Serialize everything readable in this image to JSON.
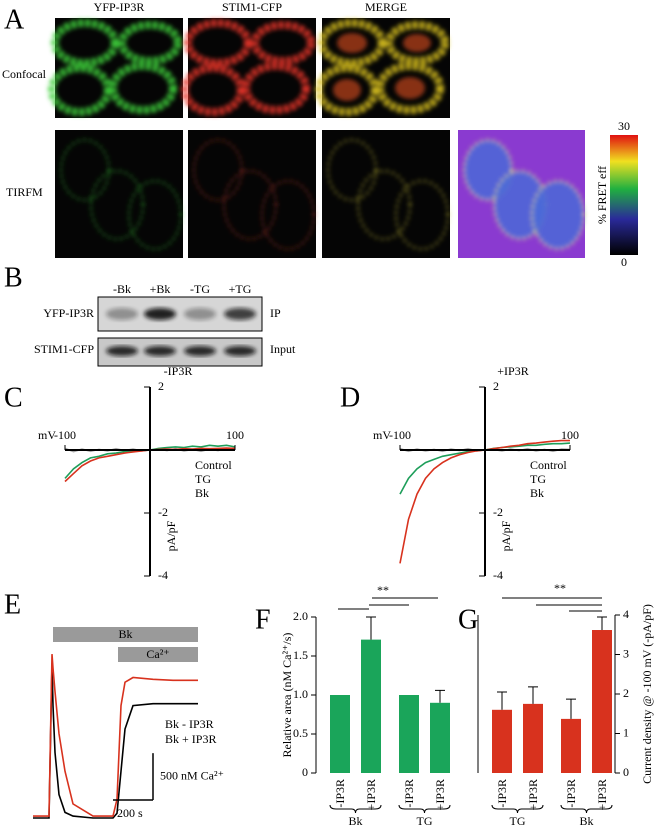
{
  "panel_a": {
    "label": "A",
    "columns": [
      "YFP-IP3R",
      "STIM1-CFP",
      "MERGE"
    ],
    "rows": [
      "Confocal",
      "TIRFM"
    ],
    "colorbar": {
      "label": "% FRET eff",
      "ticks": [
        0,
        30
      ]
    }
  },
  "panel_b": {
    "label": "B",
    "lanes": [
      "-Bk",
      "+Bk",
      "-TG",
      "+TG"
    ],
    "rows": [
      "YFP-IP3R",
      "STIM1-CFP"
    ],
    "row_notes": [
      "IP",
      "Input"
    ]
  },
  "chart_data": [
    {
      "type": "line",
      "panel": "C",
      "title": "-IP3R",
      "x_unit": "mV",
      "y_unit": "pA/pF",
      "x": [
        -100,
        -90,
        -80,
        -70,
        -60,
        -50,
        -40,
        -30,
        -20,
        -10,
        0,
        10,
        20,
        30,
        40,
        50,
        60,
        70,
        80,
        90,
        100
      ],
      "xlim": [
        -100,
        100
      ],
      "xticks": [
        -100,
        100
      ],
      "ylim": [
        -4,
        2
      ],
      "yticks": [
        2,
        -2,
        -4
      ],
      "series": [
        {
          "name": "Control",
          "color": "#a8a8a8",
          "values": [
            0.05,
            -0.05,
            0.03,
            -0.04,
            0.02,
            -0.03,
            0.04,
            -0.02,
            0.03,
            -0.03,
            0,
            0.03,
            -0.02,
            0.04,
            -0.03,
            0.02,
            -0.04,
            0.03,
            -0.02,
            0.04,
            0.02
          ]
        },
        {
          "name": "TG",
          "color": "#1e9e5a",
          "values": [
            -0.9,
            -0.6,
            -0.4,
            -0.25,
            -0.2,
            -0.12,
            -0.1,
            -0.05,
            -0.04,
            -0.02,
            0,
            0.05,
            0.08,
            0.1,
            0.08,
            0.12,
            0.1,
            0.15,
            0.12,
            0.15,
            0.1
          ]
        },
        {
          "name": "Bk",
          "color": "#d8321e",
          "values": [
            -1.0,
            -0.75,
            -0.5,
            -0.35,
            -0.25,
            -0.2,
            -0.15,
            -0.1,
            -0.06,
            -0.03,
            0,
            0.02,
            0.03,
            0.02,
            0.04,
            0.03,
            0.05,
            0.04,
            0.05,
            0.06,
            0.05
          ]
        }
      ]
    },
    {
      "type": "line",
      "panel": "D",
      "title": "+IP3R",
      "x_unit": "mV",
      "y_unit": "pA/pF",
      "x": [
        -100,
        -90,
        -80,
        -70,
        -60,
        -50,
        -40,
        -30,
        -20,
        -10,
        0,
        10,
        20,
        30,
        40,
        50,
        60,
        70,
        80,
        90,
        100
      ],
      "xlim": [
        -100,
        100
      ],
      "xticks": [
        -100,
        100
      ],
      "ylim": [
        -4,
        2
      ],
      "yticks": [
        2,
        -2,
        -4
      ],
      "series": [
        {
          "name": "Control",
          "color": "#a8a8a8",
          "values": [
            0.04,
            -0.04,
            0.03,
            -0.03,
            0.02,
            -0.04,
            0.03,
            -0.02,
            0.04,
            -0.03,
            0,
            0.02,
            -0.03,
            0.03,
            -0.02,
            0.04,
            -0.03,
            0.02,
            -0.04,
            0.03,
            0.02
          ]
        },
        {
          "name": "TG",
          "color": "#1e9e5a",
          "values": [
            -1.4,
            -0.9,
            -0.6,
            -0.4,
            -0.3,
            -0.2,
            -0.15,
            -0.1,
            -0.05,
            -0.02,
            0,
            0.05,
            0.08,
            0.1,
            0.12,
            0.15,
            0.15,
            0.18,
            0.2,
            0.2,
            0.22
          ]
        },
        {
          "name": "Bk",
          "color": "#d8321e",
          "values": [
            -3.6,
            -2.2,
            -1.4,
            -0.9,
            -0.6,
            -0.4,
            -0.25,
            -0.15,
            -0.08,
            -0.03,
            0,
            0.04,
            0.08,
            0.12,
            0.15,
            0.2,
            0.22,
            0.25,
            0.28,
            0.3,
            0.3
          ]
        }
      ]
    },
    {
      "type": "line",
      "panel": "E",
      "x": [
        0,
        80,
        95,
        100,
        110,
        130,
        160,
        200,
        300,
        400,
        420,
        440,
        460,
        500,
        600,
        700,
        825
      ],
      "xlim": [
        0,
        825
      ],
      "ylim": [
        0,
        1900
      ],
      "bars": [
        {
          "label": "Bk",
          "start": 100,
          "end": 825
        },
        {
          "label": "Ca²⁺",
          "start": 425,
          "end": 825
        }
      ],
      "scale_x": {
        "value": 200,
        "label": "200 s"
      },
      "scale_y": {
        "value": 500,
        "label": "500 nM Ca²⁺"
      },
      "series": [
        {
          "name": "Bk - IP3R",
          "color": "#000000",
          "values": [
            0,
            0,
            1650,
            1200,
            700,
            250,
            60,
            20,
            0,
            0,
            50,
            500,
            950,
            1200,
            1220,
            1220,
            1220
          ]
        },
        {
          "name": "Bk + IP3R",
          "color": "#d8321e",
          "values": [
            20,
            20,
            1750,
            1600,
            1350,
            900,
            500,
            150,
            20,
            20,
            200,
            1200,
            1450,
            1500,
            1480,
            1470,
            1470
          ]
        }
      ]
    },
    {
      "type": "bar",
      "panel": "F",
      "ylabel": "Relative area (nM Ca²⁺/s)",
      "categories": [
        "-IP3R",
        "+IP3R",
        "-IP3R",
        "+IP3R"
      ],
      "groups": [
        "Bk",
        "TG"
      ],
      "annotation": "**",
      "ylim": [
        0,
        2
      ],
      "yticks": [
        0,
        0.5,
        {
          "value": 1,
          "label": "1.0"
        },
        1.5,
        {
          "value": 2,
          "label": "2.0"
        }
      ],
      "series": [
        {
          "color": "#1aa55a",
          "values": [
            1,
            1.71,
            1,
            0.9
          ],
          "errors": [
            null,
            0.29,
            null,
            0.16
          ]
        }
      ]
    },
    {
      "type": "bar",
      "panel": "G",
      "y2label": "Current density @ -100 mV (-pA/pF)",
      "categories": [
        "-IP3R",
        "+IP3R",
        "-IP3R",
        "+IP3R"
      ],
      "groups": [
        "TG",
        "Bk"
      ],
      "annotation": "**",
      "y2lim": [
        0,
        4
      ],
      "y2ticks": [
        0,
        1,
        2,
        3,
        4
      ],
      "series": [
        {
          "color": "#d8321e",
          "axis": "y2",
          "values": [
            1.6,
            1.75,
            1.37,
            3.62
          ],
          "errors": [
            0.45,
            0.43,
            0.5,
            0.33
          ]
        }
      ]
    }
  ]
}
